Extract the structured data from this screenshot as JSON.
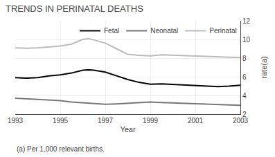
{
  "chart_data": {
    "type": "line",
    "title": "TRENDS IN PERINATAL DEATHS",
    "xlabel": "Year",
    "ylabel": "rate(a)",
    "annotations": [
      "(a) Per 1,000 relevant births."
    ],
    "x": [
      1993,
      1993.5,
      1994,
      1994.5,
      1995,
      1995.5,
      1996,
      1996.25,
      1996.5,
      1997,
      1997.5,
      1998,
      1998.5,
      1999,
      1999.5,
      2000,
      2000.5,
      2001,
      2001.5,
      2002,
      2002.5,
      2003
    ],
    "series": [
      {
        "name": "Fetal",
        "color": "#000000",
        "values": [
          5.9,
          5.85,
          5.9,
          6.1,
          6.2,
          6.4,
          6.7,
          6.75,
          6.7,
          6.5,
          6.1,
          5.7,
          5.4,
          5.2,
          5.25,
          5.2,
          5.15,
          5.1,
          5.05,
          4.95,
          5.0,
          5.1
        ]
      },
      {
        "name": "Neonatal",
        "color": "#777777",
        "values": [
          3.7,
          3.65,
          3.6,
          3.5,
          3.45,
          3.3,
          3.2,
          3.15,
          3.1,
          3.05,
          3.1,
          3.15,
          3.2,
          3.3,
          3.25,
          3.2,
          3.15,
          3.1,
          3.1,
          3.05,
          3.0,
          2.95
        ]
      },
      {
        "name": "Perinatal",
        "color": "#bbbbbb",
        "values": [
          9.1,
          9.05,
          9.1,
          9.2,
          9.3,
          9.5,
          10.0,
          10.1,
          9.95,
          9.6,
          9.0,
          8.4,
          8.3,
          8.25,
          8.35,
          8.3,
          8.3,
          8.25,
          8.2,
          8.1,
          8.05,
          8.05
        ]
      }
    ],
    "xlim": [
      1993,
      2003
    ],
    "xticks": [
      1993,
      1995,
      1997,
      1999,
      2001,
      2003
    ],
    "ylim": [
      2,
      12
    ],
    "yticks": [
      2,
      4,
      6,
      8,
      10,
      12
    ],
    "legend": "upper right"
  }
}
